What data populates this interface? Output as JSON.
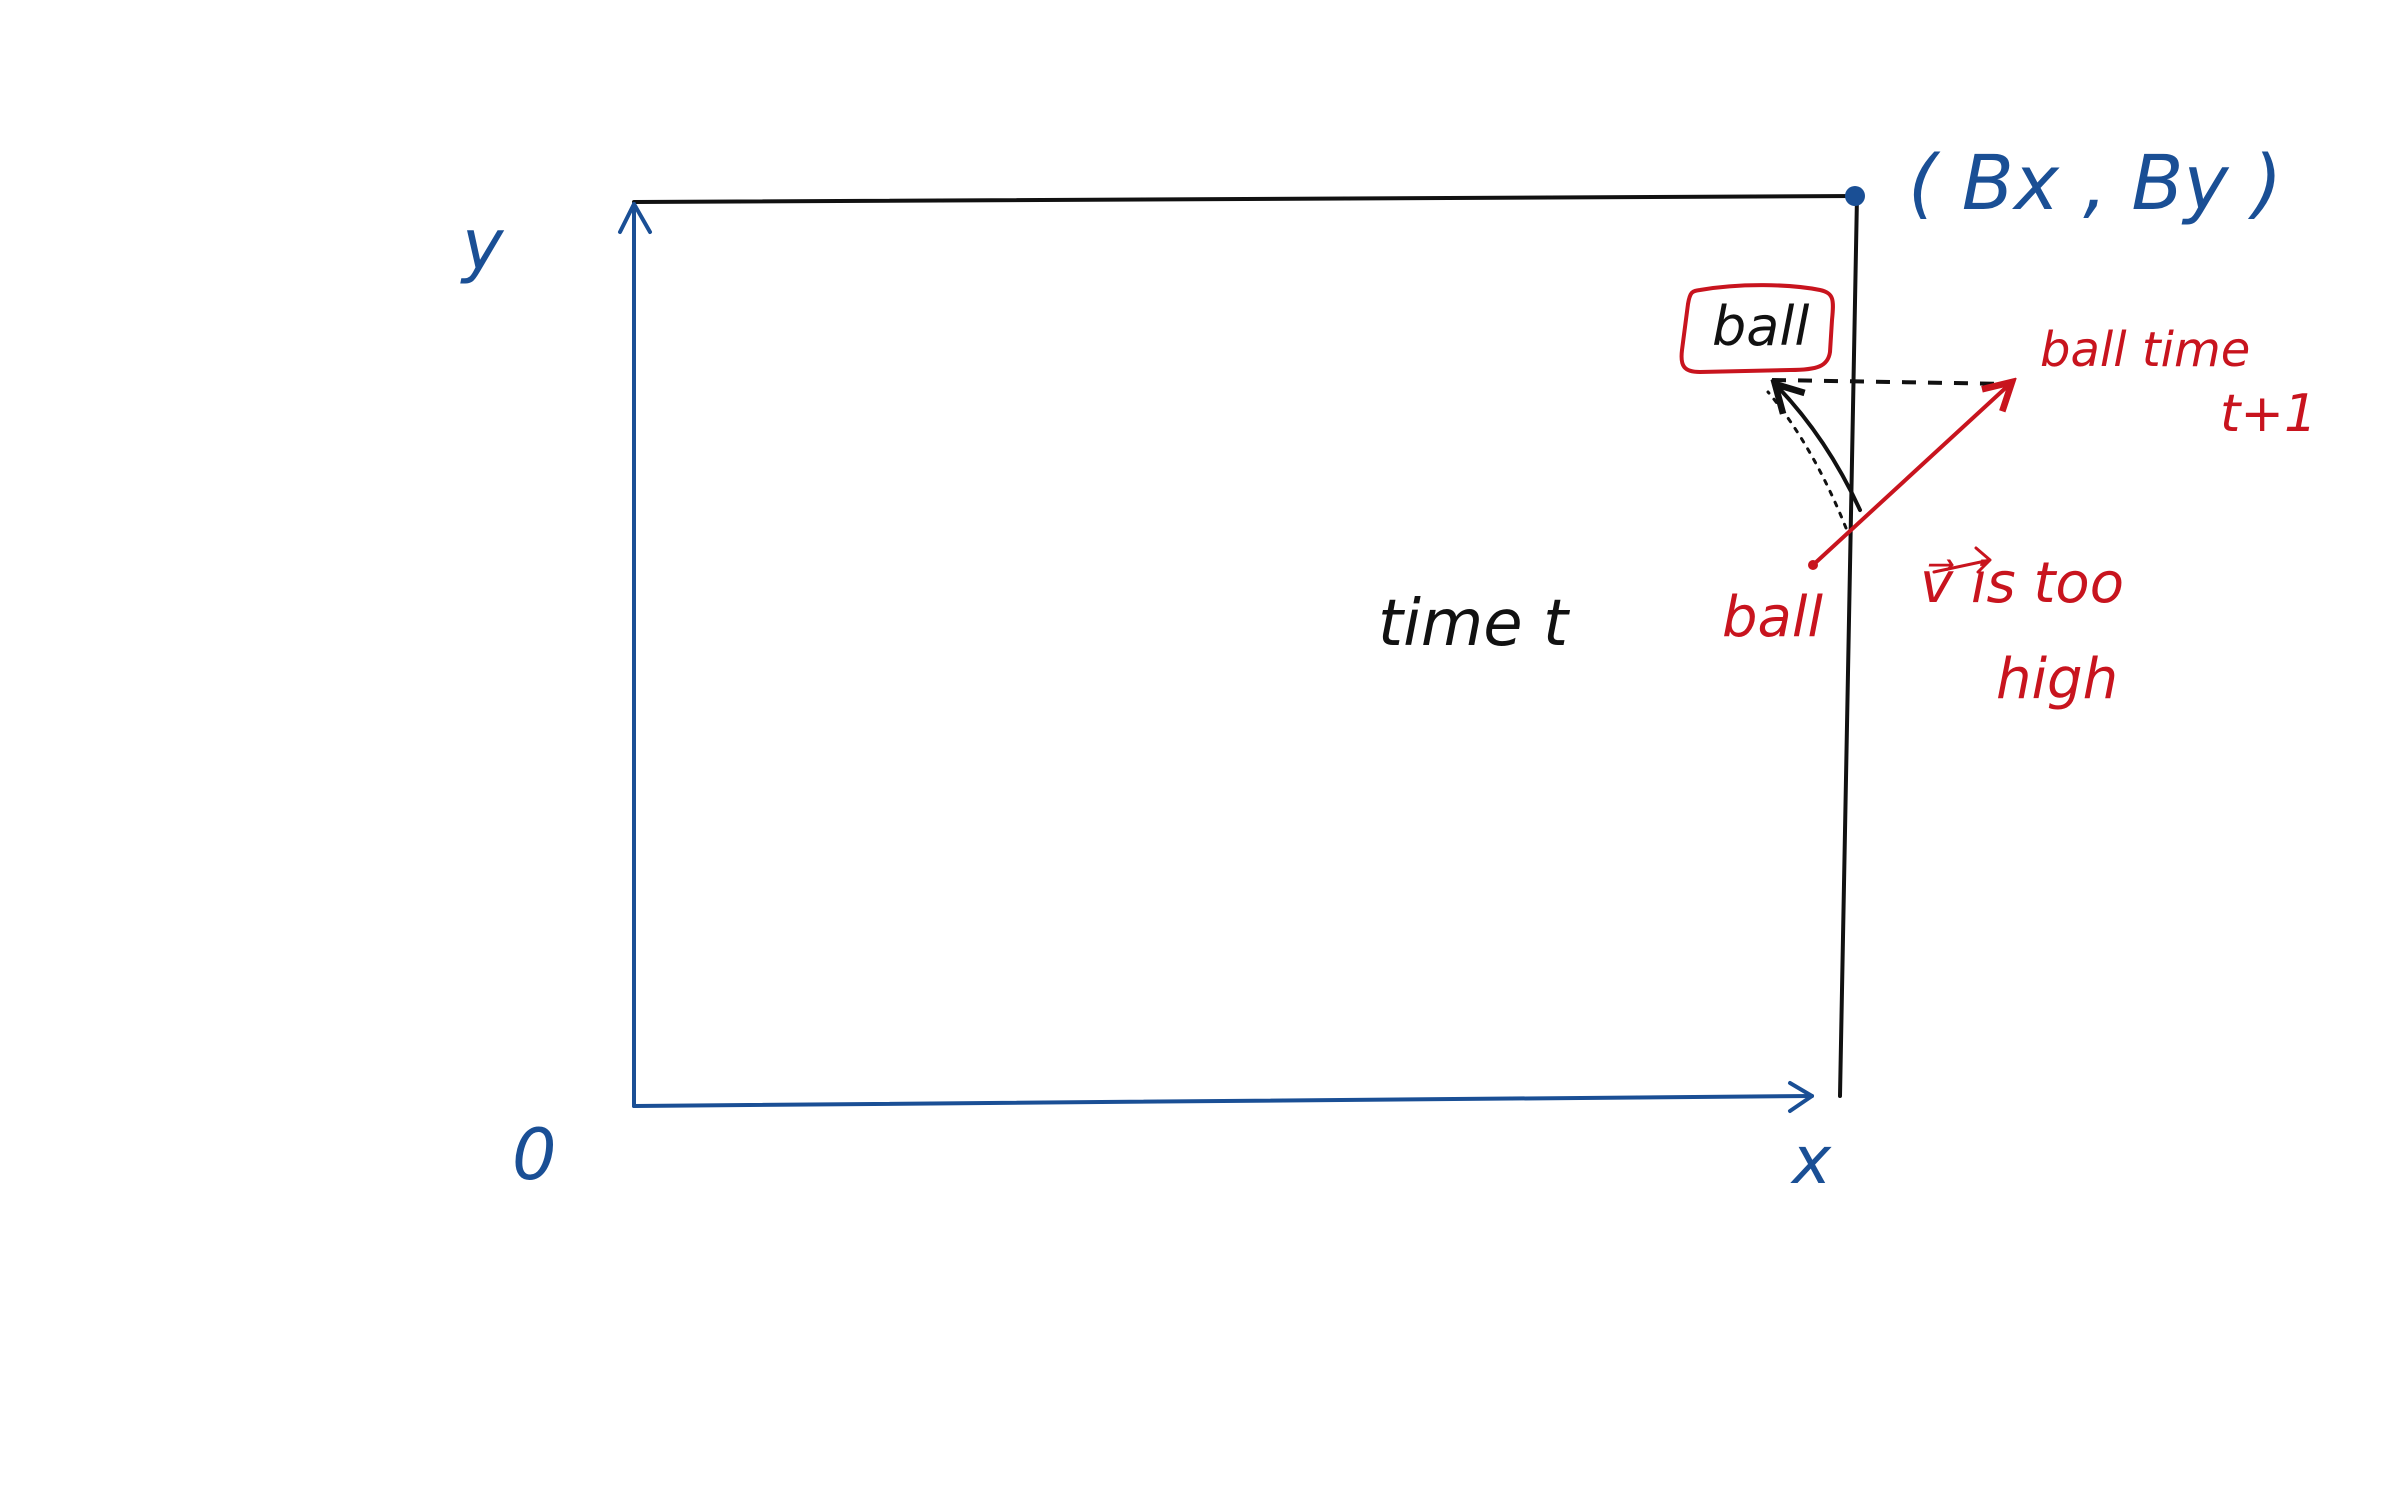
{
  "colors": {
    "axis": "#1a4f95",
    "boundary": "#111111",
    "velocity": "#c8141e",
    "path": "#111111"
  },
  "axes": {
    "y_label": "y",
    "x_label": "x",
    "origin_label": "0"
  },
  "corner": {
    "label": "( Bx , By )"
  },
  "ball_reflected": {
    "label": "ball"
  },
  "ball_time_t": {
    "caption": "time t",
    "label": "ball"
  },
  "ball_time_next": {
    "line1": "ball time",
    "line2": "t+1"
  },
  "note": {
    "line1": "v⃗ is too",
    "line2": "high"
  }
}
